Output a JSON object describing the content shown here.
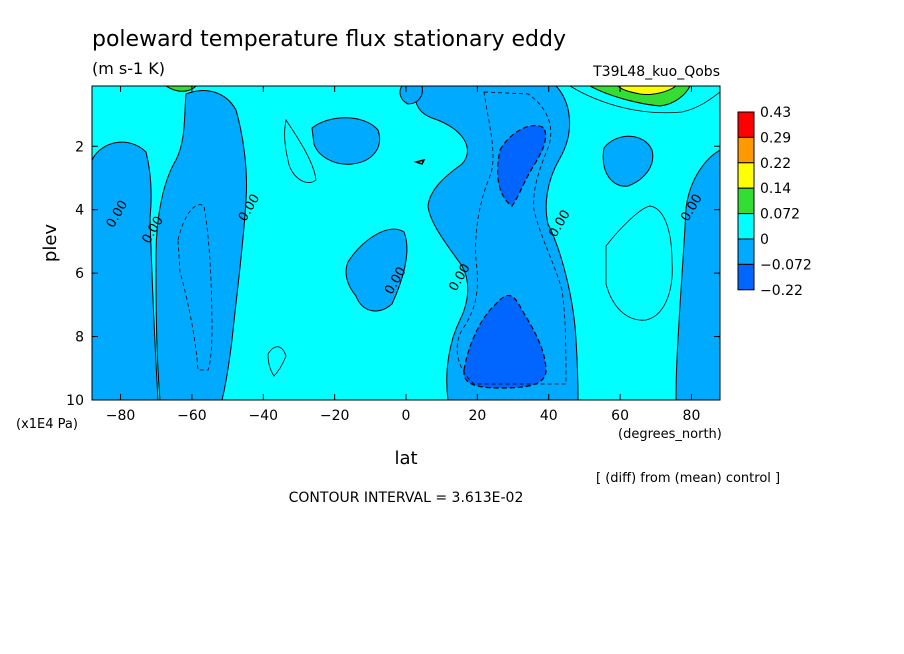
{
  "chart_data": {
    "type": "heatmap",
    "title": "poleward temperature flux stationary eddy",
    "units": "(m s-1 K)",
    "run_label": "T39L48_kuo_Qobs",
    "xlabel": "lat",
    "x_units": "(degrees_north)",
    "ylabel": "plev",
    "y_units": "(x1E4 Pa)",
    "x_ticks": [
      -80,
      -60,
      -40,
      -20,
      0,
      20,
      40,
      60,
      80
    ],
    "y_ticks": [
      2,
      4,
      6,
      8,
      10
    ],
    "xlim": [
      -88,
      88
    ],
    "ylim": [
      10,
      0.1
    ],
    "y_inverted": true,
    "contour_labels": [
      {
        "text": "0.00",
        "x": -80,
        "y": 4.2
      },
      {
        "text": "0.00",
        "x": -70,
        "y": 4.7
      },
      {
        "text": "0.00",
        "x": -43,
        "y": 4.0
      },
      {
        "text": "0.00",
        "x": -2,
        "y": 6.3
      },
      {
        "text": "0.00",
        "x": 16,
        "y": 6.2
      },
      {
        "text": "0.00",
        "x": 44,
        "y": 4.5
      },
      {
        "text": "0.00",
        "x": 81,
        "y": 4.0
      }
    ],
    "colorbar": {
      "labels": [
        "0.43",
        "0.29",
        "0.22",
        "0.14",
        "0.072",
        "0",
        "-0.072",
        "-0.22"
      ],
      "colors": [
        "#ff0000",
        "#ff9900",
        "#ffff00",
        "#33dd33",
        "#00ffff",
        "#00aaff",
        "#0066ff"
      ]
    },
    "footer_note": "[ (diff) from (mean) control ]",
    "contour_interval": "CONTOUR INTERVAL = 3.613E-02"
  }
}
